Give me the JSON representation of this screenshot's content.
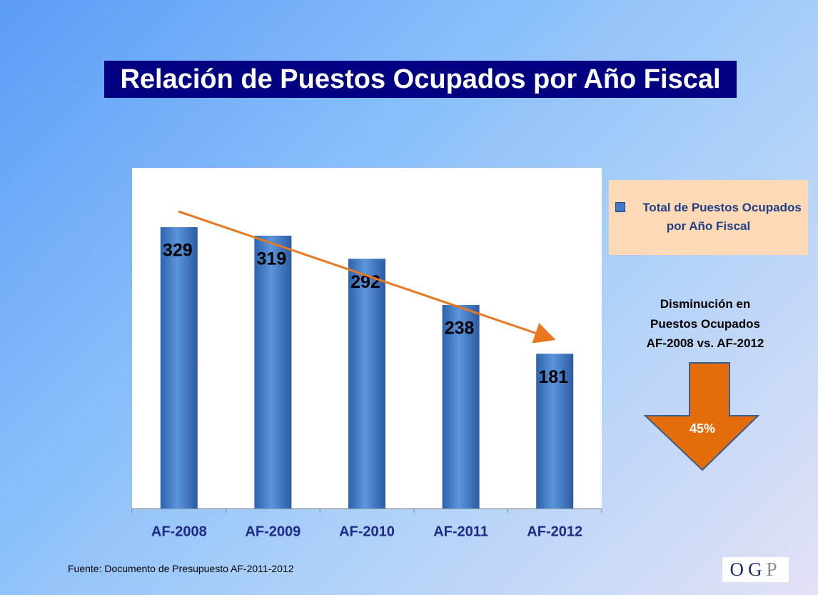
{
  "chart_data": {
    "type": "bar",
    "title": "Relación de Puestos Ocupados por Año Fiscal",
    "categories": [
      "AF-2008",
      "AF-2009",
      "AF-2010",
      "AF-2011",
      "AF-2012"
    ],
    "series": [
      {
        "name": "Total de Puestos Ocupados por Año Fiscal",
        "color": "#3f78c4",
        "values": [
          329,
          319,
          292,
          238,
          181
        ]
      }
    ],
    "annotation": [
      "Disminución en",
      "Puestos Ocupados",
      "AF-2008 vs. AF-2012"
    ],
    "change_label": "45%",
    "source": "Fuente:  Documento de Presupuesto AF-2011-2012",
    "logo": [
      "O",
      "G",
      "P"
    ]
  }
}
